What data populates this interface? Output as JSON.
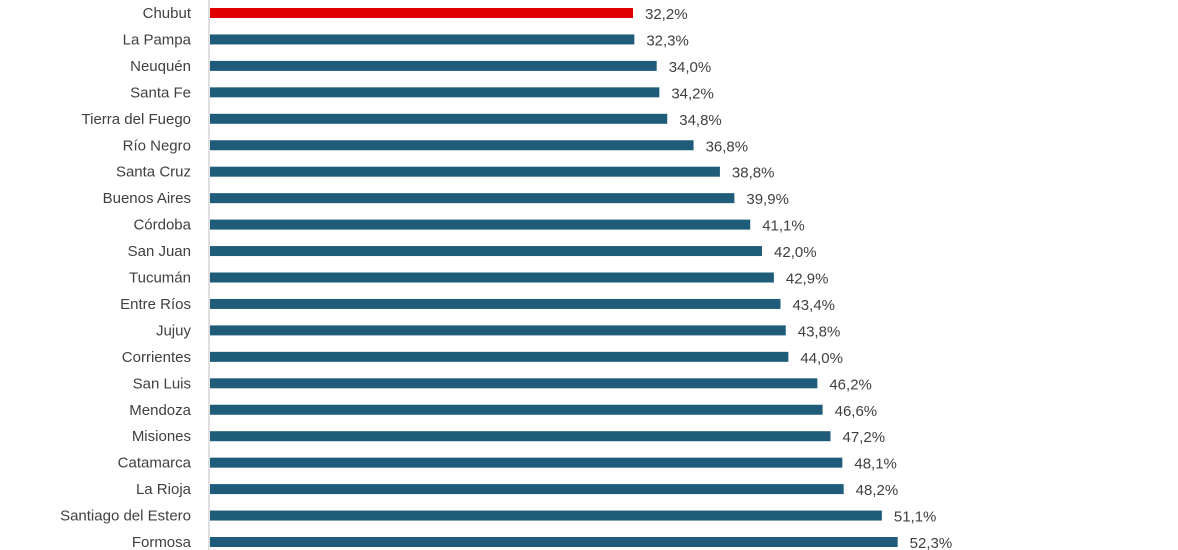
{
  "chart_data": {
    "type": "bar",
    "orientation": "horizontal",
    "categories": [
      "Chubut",
      "La Pampa",
      "Neuquén",
      "Santa Fe",
      "Tierra del Fuego",
      "Río Negro",
      "Santa Cruz",
      "Buenos Aires",
      "Córdoba",
      "San Juan",
      "Tucumán",
      "Entre Ríos",
      "Jujuy",
      "Corrientes",
      "San Luis",
      "Mendoza",
      "Misiones",
      "Catamarca",
      "La Rioja",
      "Santiago del Estero",
      "Formosa"
    ],
    "values": [
      32.2,
      32.3,
      34.0,
      34.2,
      34.8,
      36.8,
      38.8,
      39.9,
      41.1,
      42.0,
      42.9,
      43.4,
      43.8,
      44.0,
      46.2,
      46.6,
      47.2,
      48.1,
      48.2,
      51.1,
      52.3
    ],
    "value_labels": [
      "32,2%",
      "32,3%",
      "34,0%",
      "34,2%",
      "34,8%",
      "36,8%",
      "38,8%",
      "39,9%",
      "41,1%",
      "42,0%",
      "42,9%",
      "43,4%",
      "43,8%",
      "44,0%",
      "46,2%",
      "46,6%",
      "47,2%",
      "48,1%",
      "48,2%",
      "51,1%",
      "52,3%"
    ],
    "colors": {
      "default": "#1f5c7a",
      "highlight": "#e00000",
      "axis": "#bfbfbf"
    },
    "highlight_category": "Chubut",
    "xlim": [
      0,
      70
    ],
    "grid": false,
    "legend": "none"
  }
}
